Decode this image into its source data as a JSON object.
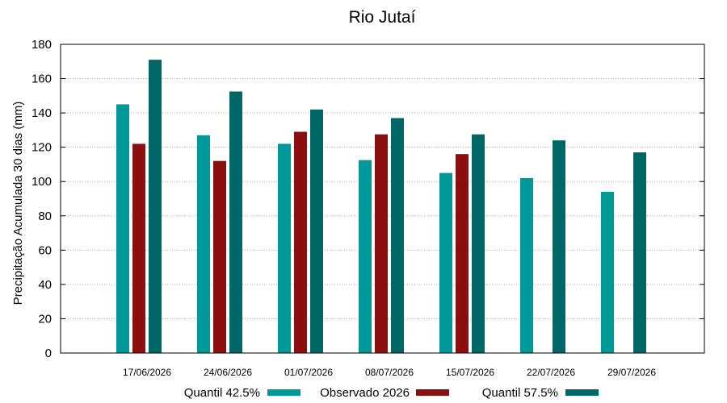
{
  "chart_data": {
    "type": "bar",
    "title": "Rio Jutaí",
    "xlabel": "",
    "ylabel": "Precipitação Acumulada 30 dias (mm)",
    "ylim": [
      0,
      180
    ],
    "yticks": [
      0,
      20,
      40,
      60,
      80,
      100,
      120,
      140,
      160,
      180
    ],
    "grid": true,
    "legend_position": "bottom",
    "categories": [
      "17/06/2026",
      "24/06/2026",
      "01/07/2026",
      "08/07/2026",
      "15/07/2026",
      "22/07/2026",
      "29/07/2026"
    ],
    "series": [
      {
        "name": "Quantil 42.5%",
        "color": "#009999",
        "values": [
          145,
          127,
          122,
          112.5,
          105,
          102,
          94
        ]
      },
      {
        "name": "Observado 2026",
        "color": "#8b0f0f",
        "values": [
          122,
          112,
          129,
          127.5,
          116,
          null,
          null
        ]
      },
      {
        "name": "Quantil 57.5%",
        "color": "#006666",
        "values": [
          171,
          152.5,
          142,
          137,
          127.5,
          124,
          117
        ]
      }
    ]
  }
}
